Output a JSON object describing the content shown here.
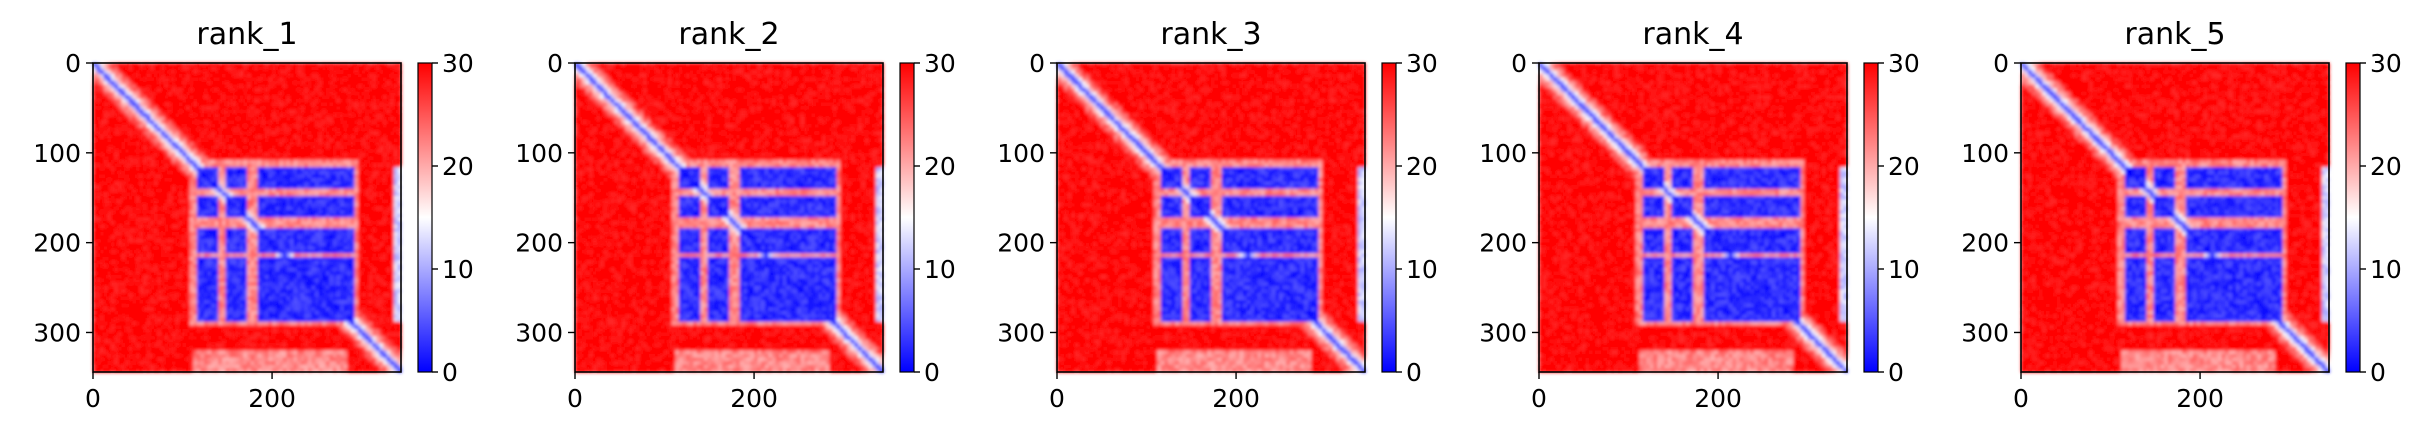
{
  "chart_data": [
    {
      "type": "heatmap",
      "title": "rank_1",
      "xlabel": "",
      "ylabel": "",
      "xlim": [
        0,
        344
      ],
      "ylim": [
        344,
        0
      ],
      "x_ticks": [
        "0",
        "200"
      ],
      "y_ticks": [
        "0",
        "100",
        "200",
        "300"
      ],
      "colorbar": {
        "min": 0,
        "max": 30,
        "ticks": [
          "0",
          "10",
          "20",
          "30"
        ],
        "colormap": "bwr"
      },
      "grid": false,
      "description": "Predicted aligned error matrix; low values along the diagonal and in residue block ~115-290"
    },
    {
      "type": "heatmap",
      "title": "rank_2",
      "xlabel": "",
      "ylabel": "",
      "xlim": [
        0,
        344
      ],
      "ylim": [
        344,
        0
      ],
      "x_ticks": [
        "0",
        "200"
      ],
      "y_ticks": [
        "0",
        "100",
        "200",
        "300"
      ],
      "colorbar": {
        "min": 0,
        "max": 30,
        "ticks": [
          "0",
          "10",
          "20",
          "30"
        ],
        "colormap": "bwr"
      },
      "grid": false
    },
    {
      "type": "heatmap",
      "title": "rank_3",
      "xlabel": "",
      "ylabel": "",
      "xlim": [
        0,
        344
      ],
      "ylim": [
        344,
        0
      ],
      "x_ticks": [
        "0",
        "200"
      ],
      "y_ticks": [
        "0",
        "100",
        "200",
        "300"
      ],
      "colorbar": {
        "min": 0,
        "max": 30,
        "ticks": [
          "0",
          "10",
          "20",
          "30"
        ],
        "colormap": "bwr"
      },
      "grid": false
    },
    {
      "type": "heatmap",
      "title": "rank_4",
      "xlabel": "",
      "ylabel": "",
      "xlim": [
        0,
        344
      ],
      "ylim": [
        344,
        0
      ],
      "x_ticks": [
        "0",
        "200"
      ],
      "y_ticks": [
        "0",
        "100",
        "200",
        "300"
      ],
      "colorbar": {
        "min": 0,
        "max": 30,
        "ticks": [
          "0",
          "10",
          "20",
          "30"
        ],
        "colormap": "bwr"
      },
      "grid": false
    },
    {
      "type": "heatmap",
      "title": "rank_5",
      "xlabel": "",
      "ylabel": "",
      "xlim": [
        0,
        344
      ],
      "ylim": [
        344,
        0
      ],
      "x_ticks": [
        "0",
        "200"
      ],
      "y_ticks": [
        "0",
        "100",
        "200",
        "300"
      ],
      "colorbar": {
        "min": 0,
        "max": 30,
        "ticks": [
          "0",
          "10",
          "20",
          "30"
        ],
        "colormap": "bwr"
      },
      "grid": false
    }
  ],
  "colors": {
    "high": "#ff0000",
    "mid": "#ffffff",
    "low": "#0000ff"
  }
}
